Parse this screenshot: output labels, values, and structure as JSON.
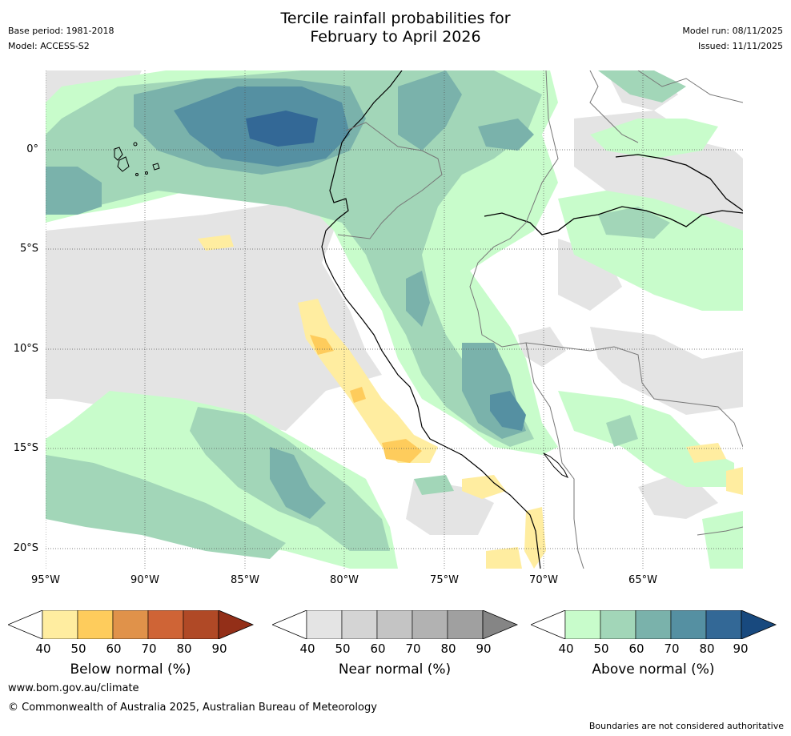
{
  "header": {
    "title_line1": "Tercile rainfall probabilities for",
    "title_line2": "February to April 2026",
    "base_period": "Base period: 1981-2018",
    "model": "Model: ACCESS-S2",
    "model_run": "Model run: 08/11/2025",
    "issued": "Issued: 11/11/2025"
  },
  "map": {
    "lat_labels": [
      "0°",
      "5°S",
      "10°S",
      "15°S",
      "20°S"
    ],
    "lon_labels": [
      "95°W",
      "90°W",
      "85°W",
      "80°W",
      "75°W",
      "70°W",
      "65°W"
    ]
  },
  "legend": {
    "below": {
      "title": "Below normal (%)",
      "ticks": [
        "40",
        "50",
        "60",
        "70",
        "80",
        "90"
      ],
      "colors": [
        "#ffffff",
        "#ffeda0",
        "#fecc5c",
        "#e0924a",
        "#cf6436",
        "#b04926",
        "#932f18"
      ]
    },
    "near": {
      "title": "Near normal (%)",
      "ticks": [
        "40",
        "50",
        "60",
        "70",
        "80",
        "90"
      ],
      "colors": [
        "#ffffff",
        "#e4e4e4",
        "#d4d4d4",
        "#c4c4c4",
        "#b2b2b2",
        "#a0a0a0",
        "#858585"
      ]
    },
    "above": {
      "title": "Above normal (%)",
      "ticks": [
        "40",
        "50",
        "60",
        "70",
        "80",
        "90"
      ],
      "colors": [
        "#ffffff",
        "#c8fccb",
        "#a2d6b8",
        "#7ab2ab",
        "#5590a2",
        "#336896",
        "#18497e"
      ]
    }
  },
  "footer": {
    "url": "www.bom.gov.au/climate",
    "copyright": "© Commonwealth of Australia 2025, Australian Bureau of Meteorology",
    "disclaimer": "Boundaries are not considered authoritative"
  }
}
